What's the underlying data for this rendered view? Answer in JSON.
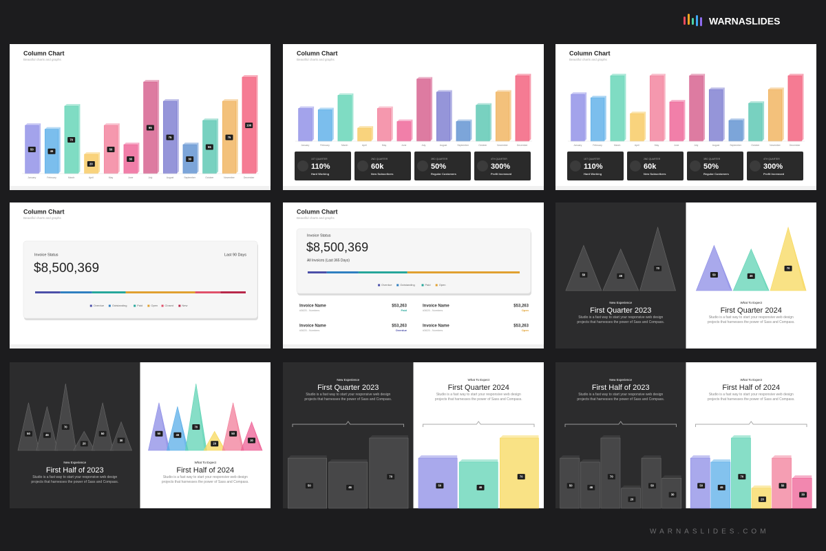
{
  "brand": "WARNASLIDES",
  "website": "WARNASLIDES.COM",
  "palette": [
    "#8c8ce6",
    "#5aaee8",
    "#5fd3b4",
    "#f7c85c",
    "#f27e9a",
    "#ee5f94",
    "#d45a8a",
    "#7b7bd0",
    "#5b8fd0",
    "#56c5b0",
    "#f0b25a",
    "#f25a78"
  ],
  "slides": [
    {
      "type": "column",
      "title": "Column Chart",
      "subtitle": "Beautiful charts and graphs",
      "categories": [
        "January",
        "February",
        "March",
        "April",
        "May",
        "June",
        "July",
        "August",
        "September",
        "October",
        "November",
        "December"
      ],
      "values": [
        50,
        46,
        70,
        20,
        50,
        30,
        95,
        75,
        30,
        55,
        75,
        100
      ]
    },
    {
      "type": "column_cards",
      "title": "Column Chart",
      "subtitle": "Beautiful charts and graphs",
      "categories": [
        "January",
        "February",
        "March",
        "April",
        "May",
        "June",
        "July",
        "August",
        "September",
        "October",
        "November",
        "December"
      ],
      "values": [
        50,
        48,
        70,
        20,
        50,
        30,
        95,
        75,
        30,
        55,
        75,
        100
      ],
      "cards": [
        {
          "quarter": "1ST QUARTER",
          "value": "110%",
          "label": "Hard Working"
        },
        {
          "quarter": "2ND QUARTER",
          "value": "60k",
          "label": "New Subscribers"
        },
        {
          "quarter": "3RD QUARTER",
          "value": "50%",
          "label": "Regular Customers"
        },
        {
          "quarter": "4TH QUARTER",
          "value": "300%",
          "label": "Profit Increased"
        }
      ]
    },
    {
      "type": "column_cards",
      "title": "Column Chart",
      "subtitle": "Beautiful charts and graphs",
      "categories": [
        "January",
        "February",
        "March",
        "April",
        "May",
        "June",
        "July",
        "August",
        "September",
        "October",
        "November",
        "December"
      ],
      "values": [
        68,
        63,
        95,
        40,
        95,
        57,
        95,
        75,
        30,
        55,
        75,
        95
      ],
      "cards": [
        {
          "quarter": "1ST QUARTER",
          "value": "110%",
          "label": "Hard Working"
        },
        {
          "quarter": "2ND QUARTER",
          "value": "60k",
          "label": "New Subscribers"
        },
        {
          "quarter": "3RD QUARTER",
          "value": "50%",
          "label": "Regular Customers"
        },
        {
          "quarter": "4TH QUARTER",
          "value": "300%",
          "label": "Profit Increased"
        }
      ]
    },
    {
      "type": "invoice",
      "title": "Column Chart",
      "subtitle": "Beautiful charts and graphs",
      "card_title": "Invoice Status",
      "period": "Last 90 Days",
      "amount": "$8,500,369",
      "segments": [
        {
          "name": "Overdue",
          "value": 12,
          "color": "#4b4fa8"
        },
        {
          "name": "Outstanding",
          "value": 15,
          "color": "#2f7fc0"
        },
        {
          "name": "Paid",
          "value": 16,
          "color": "#26a69a"
        },
        {
          "name": "Open",
          "value": 33,
          "color": "#e0a030"
        },
        {
          "name": "Closed",
          "value": 12,
          "color": "#e0506a"
        },
        {
          "name": "New",
          "value": 12,
          "color": "#b8284a"
        }
      ]
    },
    {
      "type": "invoice_list",
      "title": "Column Chart",
      "subtitle": "Beautiful charts and graphs",
      "card_title": "Invoice Status",
      "amount": "$8,500,369",
      "period": "All Invoices (Last 365 Days)",
      "segments": [
        {
          "name": "Overdue",
          "value": 9,
          "color": "#4b4fa8"
        },
        {
          "name": "Outstanding",
          "value": 15,
          "color": "#2f7fc0"
        },
        {
          "name": "Paid",
          "value": 23,
          "color": "#26a69a"
        },
        {
          "name": "Open",
          "value": 53,
          "color": "#e0a030"
        }
      ],
      "rows": [
        {
          "name": "Invoice Name",
          "number": "#3625 - Numbers",
          "amount": "$53,263",
          "status": "Paid",
          "status_color": "#26a69a"
        },
        {
          "name": "Invoice Name",
          "number": "#3625 - Numbers",
          "amount": "$53,263",
          "status": "Open",
          "status_color": "#e0a030"
        },
        {
          "name": "Invoice Name",
          "number": "#3625 - Numbers",
          "amount": "$53,263",
          "status": "Overdue",
          "status_color": "#4b4fa8"
        },
        {
          "name": "Invoice Name",
          "number": "#3625 - Numbers",
          "amount": "$53,263",
          "status": "Open",
          "status_color": "#e0a030"
        }
      ]
    },
    {
      "type": "split",
      "shape": "triangle",
      "values": [
        50,
        46,
        70
      ],
      "colors": [
        "#8c8ce6",
        "#5fd3b4",
        "#f7d85c"
      ],
      "left": {
        "kicker": "New Experience",
        "title": "First Quarter 2023",
        "text": "Studio is a fast way to start your responsive web design projects that harnesses the power of Sass and Compass."
      },
      "right": {
        "kicker": "What To Expect",
        "title": "First Quarter 2024",
        "text": "Studio is a fast way to start your responsive web design projects that harnesses the power of Sass and Compass."
      }
    },
    {
      "type": "split",
      "shape": "triangle",
      "values": [
        50,
        46,
        70,
        20,
        50,
        30
      ],
      "colors": [
        "#8c8ce6",
        "#5aaee8",
        "#5fd3b4",
        "#f7d85c",
        "#f27e9a",
        "#ee5f94"
      ],
      "left": {
        "kicker": "New Experience",
        "title": "First Half of 2023",
        "text": "Studio is a fast way to start your responsive web design projects that harnesses the power of Sass and Compass."
      },
      "right": {
        "kicker": "What To Expect",
        "title": "First Half of 2024",
        "text": "Studio is a fast way to start your responsive web design projects that harnesses the power of Sass and Compass."
      }
    },
    {
      "type": "split",
      "shape": "box",
      "values": [
        50,
        46,
        70
      ],
      "colors": [
        "#8c8ce6",
        "#5fd3b4",
        "#f7d85c"
      ],
      "left": {
        "kicker": "New Experience",
        "title": "First Quarter 2023",
        "text": "Studio is a fast way to start your responsive web design projects that harnesses the power of Sass and Compass."
      },
      "right": {
        "kicker": "What To Expect",
        "title": "First Quarter 2024",
        "text": "Studio is a fast way to start your responsive web design projects that harnesses the power of Sass and Compass."
      }
    },
    {
      "type": "split",
      "shape": "box",
      "values": [
        50,
        46,
        70,
        20,
        50,
        30
      ],
      "colors": [
        "#8c8ce6",
        "#5aaee8",
        "#5fd3b4",
        "#f7d85c",
        "#f27e9a",
        "#ee5f94"
      ],
      "left": {
        "kicker": "New Experience",
        "title": "First Half of 2023",
        "text": "Studio is a fast way to start your responsive web design projects that harnesses the power of Sass and Compass."
      },
      "right": {
        "kicker": "What To Expect",
        "title": "First Half of 2024",
        "text": "Studio is a fast way to start your responsive web design projects that harnesses the power of Sass and Compass."
      }
    }
  ]
}
